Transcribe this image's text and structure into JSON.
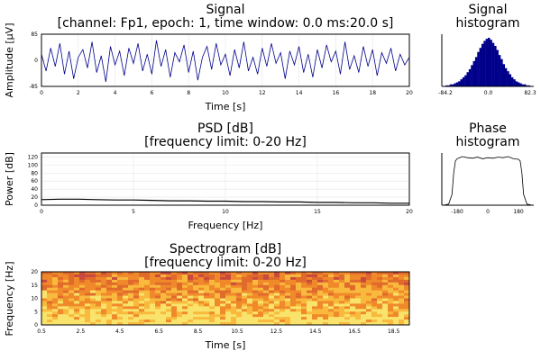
{
  "chart_data": [
    {
      "type": "line",
      "title": "Signal",
      "subtitle": "[channel: Fp1, epoch: 1, time window: 0.0 ms:20.0 s]",
      "xlabel": "Time [s]",
      "ylabel": "Amplitude [μV]",
      "xlim": [
        0,
        20
      ],
      "ylim": [
        -85,
        85
      ],
      "xticks": [
        "0",
        "2",
        "4",
        "6",
        "8",
        "10",
        "12",
        "14",
        "16",
        "18",
        "20"
      ],
      "yticks": [
        "-85",
        "0",
        "85"
      ],
      "series": [
        {
          "color": "#00008b",
          "x": [
            0,
            0.25,
            0.5,
            0.75,
            1,
            1.25,
            1.5,
            1.75,
            2,
            2.25,
            2.5,
            2.75,
            3,
            3.25,
            3.5,
            3.75,
            4,
            4.25,
            4.5,
            4.75,
            5,
            5.25,
            5.5,
            5.75,
            6,
            6.25,
            6.5,
            6.75,
            7,
            7.25,
            7.5,
            7.75,
            8,
            8.25,
            8.5,
            8.75,
            9,
            9.25,
            9.5,
            9.75,
            10,
            10.25,
            10.5,
            10.75,
            11,
            11.25,
            11.5,
            11.75,
            12,
            12.25,
            12.5,
            12.75,
            13,
            13.25,
            13.5,
            13.75,
            14,
            14.25,
            14.5,
            14.75,
            15,
            15.25,
            15.5,
            15.75,
            16,
            16.25,
            16.5,
            16.75,
            17,
            17.25,
            17.5,
            17.75,
            18,
            18.25,
            18.5,
            18.75,
            19,
            19.25,
            19.5,
            19.75,
            20
          ],
          "y": [
            20,
            -35,
            40,
            -20,
            55,
            -45,
            30,
            -60,
            10,
            35,
            -25,
            60,
            -40,
            15,
            -70,
            45,
            -15,
            30,
            -50,
            40,
            -10,
            55,
            -35,
            20,
            -45,
            65,
            -20,
            35,
            -55,
            25,
            -5,
            50,
            -40,
            30,
            -65,
            10,
            45,
            -30,
            55,
            -15,
            20,
            -50,
            35,
            -25,
            60,
            -35,
            10,
            -45,
            40,
            -20,
            55,
            -10,
            25,
            -60,
            30,
            -15,
            45,
            -40,
            20,
            -55,
            35,
            -25,
            50,
            -5,
            30,
            -45,
            60,
            -30,
            15,
            -40,
            45,
            -20,
            35,
            -50,
            25,
            -10,
            40,
            -35,
            20,
            -15,
            10
          ]
        }
      ]
    },
    {
      "type": "bar",
      "title": "Signal",
      "subtitle": "histogram",
      "xticks": [
        "-84.2",
        "0.0",
        "82.3"
      ],
      "color": "#00008b",
      "x_range": [
        -84.2,
        82.3
      ],
      "bins": 40,
      "values": [
        1,
        1,
        2,
        2,
        3,
        4,
        5,
        7,
        9,
        11,
        14,
        17,
        21,
        25,
        29,
        34,
        38,
        42,
        45,
        47,
        48,
        46,
        43,
        40,
        36,
        31,
        27,
        22,
        18,
        15,
        12,
        9,
        7,
        5,
        4,
        3,
        2,
        2,
        1,
        1
      ]
    },
    {
      "type": "line",
      "title": "PSD [dB]",
      "subtitle": "[frequency limit: 0-20 Hz]",
      "xlabel": "Frequency [Hz]",
      "ylabel": "Power [dB]",
      "xlim": [
        0,
        20
      ],
      "ylim": [
        0,
        130
      ],
      "xticks": [
        "0",
        "5",
        "10",
        "15",
        "20"
      ],
      "yticks": [
        "0",
        "20",
        "40",
        "60",
        "80",
        "100",
        "120"
      ],
      "series": [
        {
          "color": "#000000",
          "x": [
            0,
            1,
            2,
            3,
            4,
            5,
            6,
            7,
            8,
            9,
            10,
            11,
            12,
            13,
            14,
            15,
            16,
            17,
            18,
            19,
            20
          ],
          "y": [
            14,
            15,
            15,
            14,
            13,
            13,
            12,
            11,
            11,
            10,
            10,
            9,
            9,
            8,
            8,
            7,
            7,
            6,
            6,
            5,
            5
          ]
        }
      ]
    },
    {
      "type": "line",
      "title": "Phase",
      "subtitle": "histogram",
      "xticks": [
        "-180",
        "0",
        "180"
      ],
      "xlim": [
        -270,
        270
      ],
      "series": [
        {
          "color": "#000000",
          "x": [
            -260,
            -230,
            -210,
            -200,
            -190,
            -180,
            -150,
            -120,
            -90,
            -60,
            -30,
            0,
            30,
            60,
            90,
            120,
            150,
            180,
            190,
            200,
            210,
            230,
            260
          ],
          "y": [
            0,
            2,
            20,
            60,
            82,
            86,
            90,
            88,
            87,
            89,
            86,
            88,
            87,
            89,
            88,
            90,
            86,
            85,
            82,
            60,
            20,
            2,
            0
          ]
        }
      ]
    },
    {
      "type": "heatmap",
      "title": "Spectrogram [dB]",
      "subtitle": "[frequency limit: 0-20 Hz]",
      "xlabel": "Time [s]",
      "ylabel": "Frequency [Hz]",
      "xlim": [
        0.5,
        19.3
      ],
      "ylim": [
        0,
        20
      ],
      "xticks": [
        "0.5",
        "2.5",
        "4.5",
        "6.5",
        "8.5",
        "10.5",
        "12.5",
        "14.5",
        "16.5",
        "18.5"
      ],
      "yticks": [
        "0",
        "5",
        "10",
        "15",
        "20"
      ],
      "colors": [
        "#f9e36b",
        "#f8b93d",
        "#f0892a",
        "#e06a2c",
        "#c84a3e"
      ]
    }
  ]
}
